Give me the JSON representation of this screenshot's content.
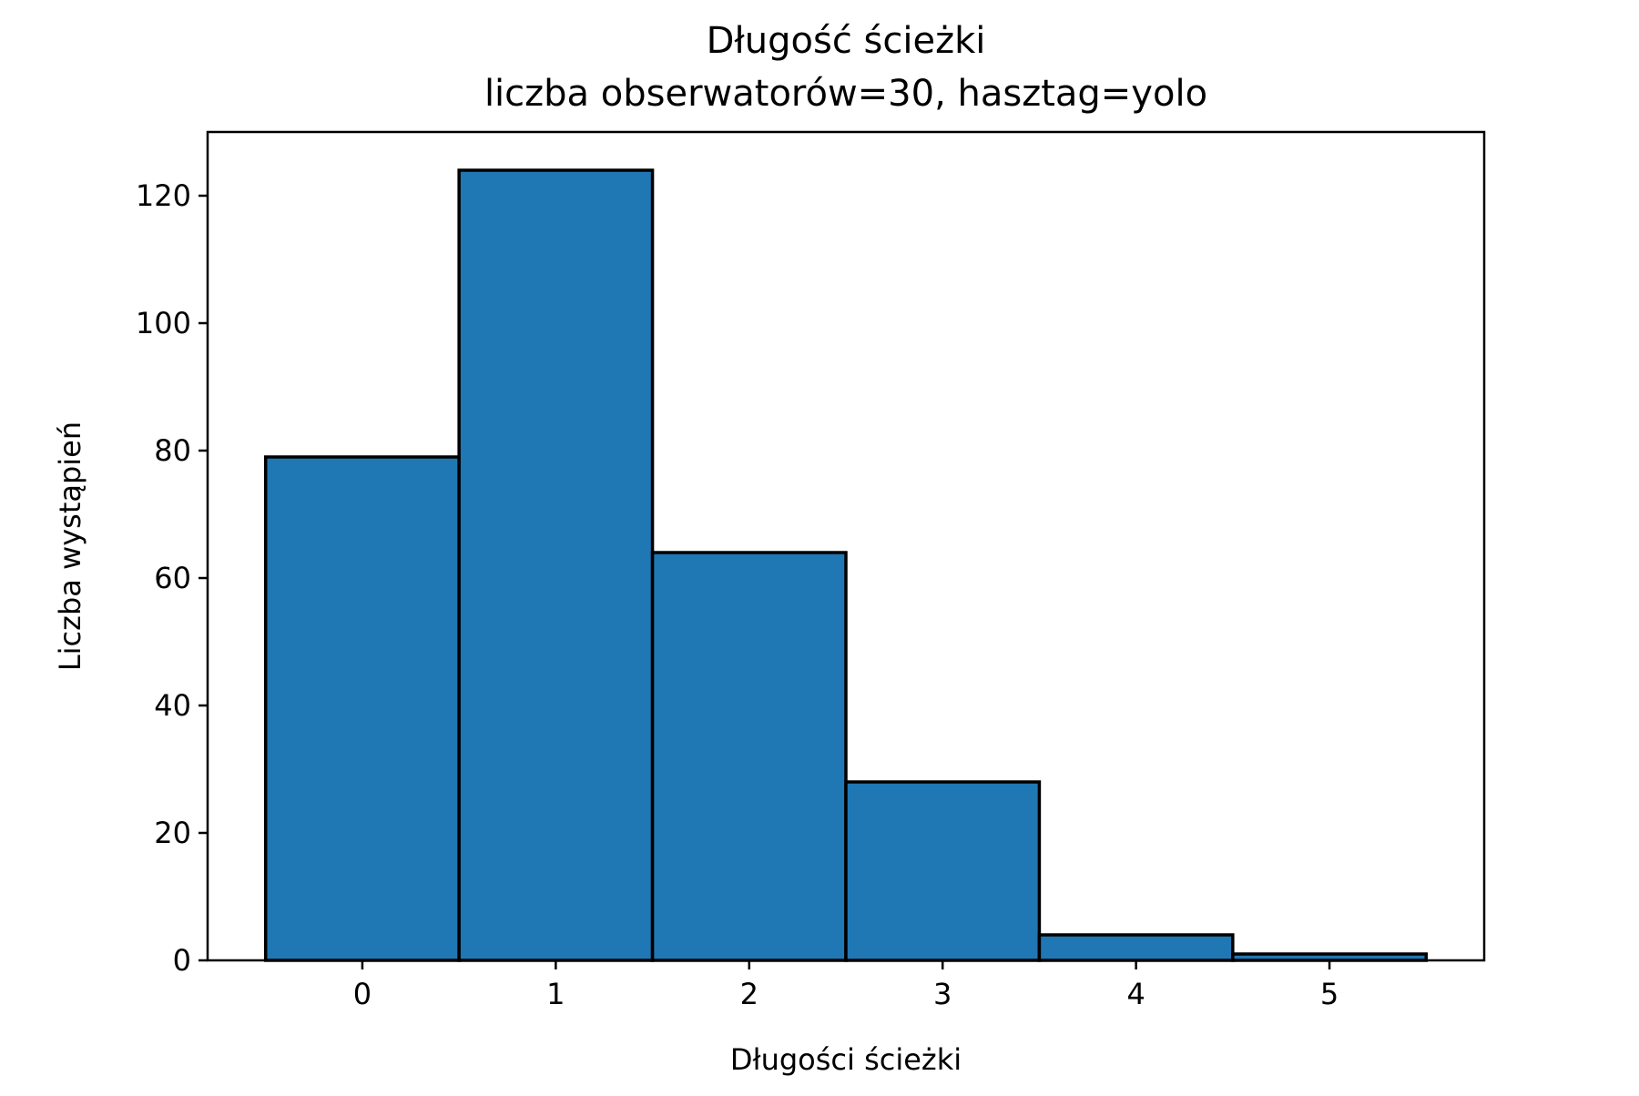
{
  "chart_data": {
    "type": "bar",
    "title": "Długość ścieżki",
    "subtitle": "liczba obserwatorów=30, hasztag=yolo",
    "xlabel": "Długości ścieżki",
    "ylabel": "Liczba wystąpień",
    "categories": [
      "0",
      "1",
      "2",
      "3",
      "4",
      "5"
    ],
    "x": [
      0,
      1,
      2,
      3,
      4,
      5
    ],
    "values": [
      79,
      124,
      64,
      28,
      4,
      1
    ],
    "bin_width": 1,
    "xlim": [
      -0.8,
      5.8
    ],
    "ylim": [
      0,
      130
    ],
    "x_ticks": [
      0,
      1,
      2,
      3,
      4,
      5
    ],
    "y_ticks": [
      0,
      20,
      40,
      60,
      80,
      100,
      120
    ],
    "grid": false,
    "legend": "none",
    "bar_color": "#1f77b4",
    "edge_color": "#000000"
  }
}
